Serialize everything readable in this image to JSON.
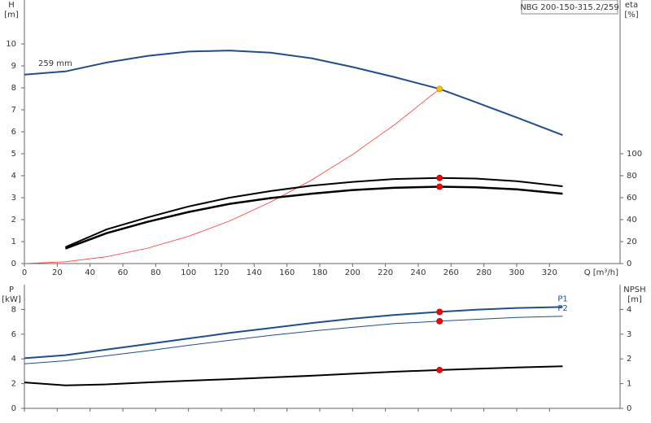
{
  "chart_data": [
    {
      "type": "line",
      "title": "NBG 200-150-315.2/259",
      "ylabel": [
        "H",
        "[m]"
      ],
      "y2label": [
        "eta",
        "[%]"
      ],
      "xlabel": "Q [m³/h]",
      "annotation": "259 mm",
      "x": [
        0,
        25,
        50,
        75,
        100,
        125,
        150,
        175,
        200,
        225,
        253,
        275,
        300,
        328
      ],
      "xlim": [
        0,
        363
      ],
      "xticks": [
        0,
        20,
        40,
        60,
        80,
        100,
        120,
        140,
        160,
        180,
        200,
        220,
        240,
        260,
        280,
        300,
        320
      ],
      "ylim": [
        0,
        12
      ],
      "yticks": [
        0,
        1,
        2,
        3,
        4,
        5,
        6,
        7,
        8,
        9,
        10
      ],
      "y2lim": [
        0,
        240
      ],
      "y2ticks": [
        0,
        20,
        40,
        60,
        80,
        100
      ],
      "series": [
        {
          "color": "#1f4e8c",
          "width": 2,
          "values": [
            8.6,
            8.75,
            9.15,
            9.45,
            9.65,
            9.7,
            9.6,
            9.35,
            8.95,
            8.5,
            7.95,
            7.35,
            6.65,
            5.85
          ]
        },
        {
          "color": "#ff3b2f",
          "width": 0.8,
          "values": [
            0,
            0.08,
            0.31,
            0.7,
            1.24,
            1.94,
            2.8,
            3.8,
            4.97,
            6.29,
            7.95,
            null,
            null,
            null
          ]
        },
        {
          "color": "#000000",
          "width": 2,
          "axis": "y2",
          "values": [
            null,
            15,
            31,
            42,
            52,
            60,
            66,
            71,
            74.4,
            77,
            78,
            77.4,
            75,
            70.4
          ]
        },
        {
          "color": "#000000",
          "width": 2.5,
          "axis": "y2",
          "values": [
            null,
            13.6,
            27.6,
            38,
            47,
            54.4,
            59.6,
            63.6,
            67,
            69,
            70,
            69.4,
            67.6,
            63.6
          ]
        }
      ],
      "markers": [
        {
          "x": 253,
          "y": 7.95,
          "color": "#ffc000"
        },
        {
          "x": 253,
          "y": 78,
          "axis": "y2",
          "color": "#ff0000"
        },
        {
          "x": 253,
          "y": 70,
          "axis": "y2",
          "color": "#ff0000"
        }
      ]
    },
    {
      "type": "line",
      "ylabel": [
        "P",
        "[kW]"
      ],
      "y2label": [
        "NPSH",
        "[m]"
      ],
      "x": [
        0,
        25,
        50,
        75,
        100,
        125,
        150,
        175,
        200,
        225,
        253,
        275,
        300,
        328
      ],
      "xlim": [
        0,
        363
      ],
      "xticks": [
        0,
        20,
        40,
        60,
        80,
        100,
        120,
        140,
        160,
        180,
        200,
        220,
        240,
        260,
        280,
        300,
        320
      ],
      "ylim": [
        0,
        10
      ],
      "yticks": [
        0,
        2,
        4,
        6,
        8
      ],
      "y2lim": [
        0,
        5
      ],
      "y2ticks": [
        0,
        1,
        2,
        3,
        4
      ],
      "series": [
        {
          "name": "P1",
          "color": "#1f4e8c",
          "width": 2,
          "values": [
            4.05,
            4.3,
            4.75,
            5.2,
            5.65,
            6.1,
            6.5,
            6.9,
            7.25,
            7.55,
            7.8,
            7.98,
            8.12,
            8.2
          ]
        },
        {
          "name": "P2",
          "color": "#1f4e8c",
          "width": 1,
          "values": [
            3.6,
            3.85,
            4.25,
            4.65,
            5.1,
            5.5,
            5.9,
            6.25,
            6.55,
            6.85,
            7.05,
            7.2,
            7.35,
            7.45
          ]
        },
        {
          "color": "#000000",
          "width": 2,
          "axis": "y2",
          "values": [
            1.05,
            0.93,
            0.97,
            1.05,
            1.12,
            1.18,
            1.25,
            1.32,
            1.4,
            1.48,
            1.55,
            1.6,
            1.65,
            1.7
          ]
        }
      ],
      "markers": [
        {
          "x": 253,
          "y": 7.8,
          "color": "#ff0000"
        },
        {
          "x": 253,
          "y": 7.05,
          "color": "#ff0000"
        },
        {
          "x": 253,
          "y": 1.55,
          "axis": "y2",
          "color": "#ff0000"
        }
      ]
    }
  ]
}
